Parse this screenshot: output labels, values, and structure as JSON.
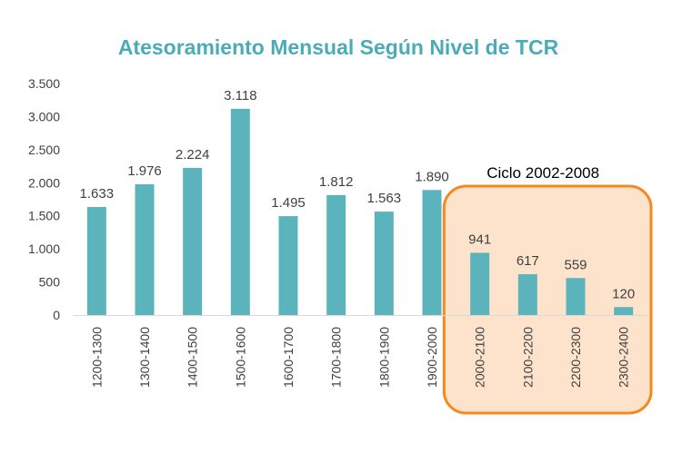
{
  "chart_data": {
    "type": "bar",
    "title": "Atesoramiento Mensual Según Nivel de TCR",
    "categories": [
      "1200-1300",
      "1300-1400",
      "1400-1500",
      "1500-1600",
      "1600-1700",
      "1700-1800",
      "1800-1900",
      "1900-2000",
      "2000-2100",
      "2100-2200",
      "2200-2300",
      "2300-2400"
    ],
    "values": [
      1633,
      1976,
      2224,
      3118,
      1495,
      1812,
      1563,
      1890,
      941,
      617,
      559,
      120
    ],
    "value_labels": [
      "1.633",
      "1.976",
      "2.224",
      "3.118",
      "1.495",
      "1.812",
      "1.563",
      "1.890",
      "941",
      "617",
      "559",
      "120"
    ],
    "yticks": [
      0,
      500,
      1000,
      1500,
      2000,
      2500,
      3000,
      3500
    ],
    "ytick_labels": [
      "0",
      "500",
      "1.000",
      "1.500",
      "2.000",
      "2.500",
      "3.000",
      "3.500"
    ],
    "ylim": [
      0,
      3500
    ],
    "grid": false,
    "bar_color": "#5BB4BC",
    "annotation": {
      "label": "Ciclo 2002-2008",
      "first_category_index": 8,
      "last_category_index": 11,
      "fill": "#FDE3CC",
      "stroke": "#F5891F"
    }
  }
}
